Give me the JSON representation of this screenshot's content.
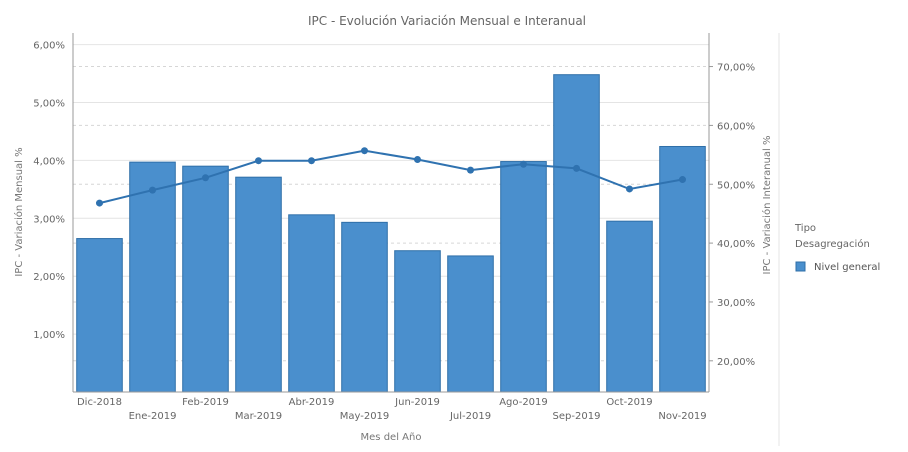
{
  "chart_data": {
    "type": "bar",
    "title": "IPC - Evolución Variación Mensual e Interanual",
    "xlabel": "Mes del Año",
    "ylabel": "IPC - Variación Mensual %",
    "y2label": "IPC - Variación Interanual %",
    "categories": [
      "Dic-2018",
      "Ene-2019",
      "Feb-2019",
      "Mar-2019",
      "Abr-2019",
      "May-2019",
      "Jun-2019",
      "Jul-2019",
      "Ago-2019",
      "Sep-2019",
      "Oct-2019",
      "Nov-2019"
    ],
    "series": [
      {
        "name": "Nivel general",
        "type": "bar",
        "axis": "left",
        "values": [
          2.65,
          3.97,
          3.9,
          3.71,
          3.06,
          2.93,
          2.44,
          2.35,
          3.98,
          5.48,
          2.95,
          4.24
        ]
      },
      {
        "type": "line",
        "axis": "right",
        "values": [
          46.8,
          49.0,
          51.1,
          54.0,
          54.0,
          55.7,
          54.2,
          52.4,
          53.4,
          52.7,
          49.2,
          50.8
        ]
      }
    ],
    "ylim": [
      0,
      6.2
    ],
    "y2lim": [
      14.7,
      75.7
    ],
    "yticks": [
      "1,00%",
      "2,00%",
      "3,00%",
      "4,00%",
      "5,00%",
      "6,00%"
    ],
    "y2ticks": [
      "20,00%",
      "30,00%",
      "40,00%",
      "50,00%",
      "60,00%",
      "70,00%"
    ],
    "legend": {
      "title_line1": "Tipo",
      "title_line2": "Desagregación",
      "position": "right"
    },
    "grid": true,
    "colors": {
      "bar": "#4a8fcd",
      "line": "#2f72b0"
    }
  }
}
